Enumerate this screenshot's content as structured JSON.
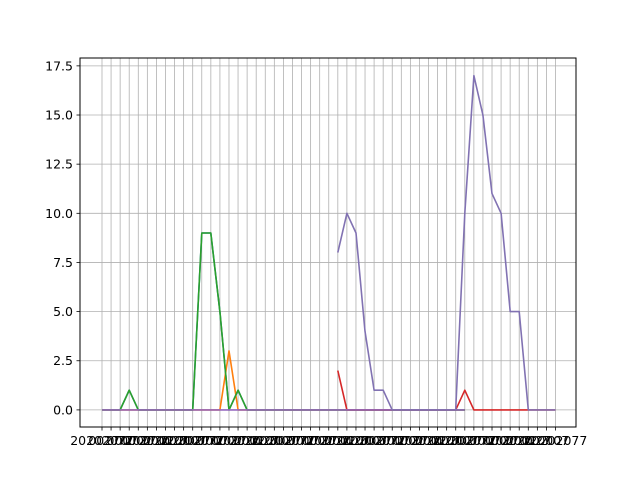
{
  "chart_data": {
    "type": "line",
    "title": "",
    "xlabel": "",
    "ylabel": "",
    "grid": true,
    "ylim": [
      -0.87,
      17.9
    ],
    "yticks": [
      "0.0",
      "2.5",
      "5.0",
      "7.5",
      "10.0",
      "12.5",
      "15.0",
      "17.5"
    ],
    "x_axis_note": "categorical date-like labels that overlap into an unreadable run; partial fragments visible",
    "x_label_fragments": [
      "2020",
      "2077",
      "0027",
      "0002",
      "0007"
    ],
    "series": [
      {
        "color": "#1f77b4",
        "points": [
          [
            0,
            0
          ],
          [
            1,
            0
          ],
          [
            2,
            0
          ],
          [
            3,
            1
          ],
          [
            4,
            0
          ],
          [
            5,
            0
          ],
          [
            6,
            0
          ],
          [
            7,
            0
          ],
          [
            8,
            0
          ],
          [
            9,
            0
          ],
          [
            10,
            0
          ],
          [
            11,
            9
          ],
          [
            12,
            9
          ],
          [
            13,
            5
          ],
          [
            14,
            0
          ],
          [
            15,
            1
          ],
          [
            16,
            0
          ],
          [
            17,
            0
          ],
          [
            18,
            0
          ],
          [
            19,
            0
          ],
          [
            20,
            0
          ],
          [
            21,
            0
          ],
          [
            22,
            0
          ],
          [
            23,
            0
          ],
          [
            24,
            0
          ],
          [
            25,
            0
          ],
          [
            26,
            0
          ],
          [
            27,
            0
          ],
          [
            28,
            0
          ],
          [
            29,
            0
          ],
          [
            30,
            0
          ],
          [
            31,
            0
          ],
          [
            32,
            0
          ],
          [
            33,
            0
          ],
          [
            34,
            0
          ],
          [
            35,
            0
          ],
          [
            36,
            0
          ],
          [
            37,
            0
          ],
          [
            38,
            0
          ],
          [
            39,
            0
          ],
          [
            40,
            0
          ]
        ]
      },
      {
        "color": "#ff7f0e",
        "points": [
          [
            0,
            0
          ],
          [
            1,
            0
          ],
          [
            2,
            0
          ],
          [
            3,
            0
          ],
          [
            4,
            0
          ],
          [
            5,
            0
          ],
          [
            6,
            0
          ],
          [
            7,
            0
          ],
          [
            8,
            0
          ],
          [
            9,
            0
          ],
          [
            10,
            0
          ],
          [
            11,
            0
          ],
          [
            12,
            0
          ],
          [
            13,
            0
          ],
          [
            14,
            3
          ],
          [
            15,
            0
          ],
          [
            16,
            0
          ],
          [
            17,
            0
          ],
          [
            18,
            0
          ],
          [
            19,
            0
          ],
          [
            20,
            0
          ],
          [
            21,
            0
          ],
          [
            22,
            0
          ],
          [
            23,
            0
          ],
          [
            24,
            0
          ],
          [
            25,
            0
          ],
          [
            26,
            0
          ],
          [
            27,
            0
          ],
          [
            28,
            0
          ],
          [
            29,
            0
          ],
          [
            30,
            0
          ],
          [
            31,
            0
          ],
          [
            32,
            0
          ],
          [
            33,
            0
          ],
          [
            34,
            0
          ],
          [
            35,
            0
          ],
          [
            36,
            0
          ],
          [
            37,
            0
          ],
          [
            38,
            0
          ],
          [
            39,
            0
          ],
          [
            40,
            0
          ]
        ]
      },
      {
        "color": "#2ca02c",
        "points": [
          [
            0,
            0
          ],
          [
            1,
            0
          ],
          [
            2,
            0
          ],
          [
            3,
            1
          ],
          [
            4,
            0
          ],
          [
            5,
            0
          ],
          [
            6,
            0
          ],
          [
            7,
            0
          ],
          [
            8,
            0
          ],
          [
            9,
            0
          ],
          [
            10,
            0
          ],
          [
            11,
            9
          ],
          [
            12,
            9
          ],
          [
            13,
            5
          ],
          [
            14,
            0
          ],
          [
            15,
            1
          ],
          [
            16,
            0
          ],
          [
            17,
            0
          ],
          [
            18,
            0
          ],
          [
            19,
            0
          ],
          [
            20,
            0
          ],
          [
            21,
            0
          ],
          [
            22,
            0
          ],
          [
            23,
            0
          ],
          [
            24,
            0
          ],
          [
            25,
            0
          ],
          [
            26,
            0
          ],
          [
            27,
            0
          ],
          [
            28,
            0
          ],
          [
            29,
            0
          ],
          [
            30,
            0
          ],
          [
            31,
            0
          ],
          [
            32,
            0
          ],
          [
            33,
            0
          ],
          [
            34,
            0
          ],
          [
            35,
            0
          ],
          [
            36,
            0
          ],
          [
            37,
            0
          ],
          [
            38,
            0
          ],
          [
            39,
            0
          ],
          [
            40,
            0
          ]
        ]
      },
      {
        "color": "#d62728",
        "points": [
          [
            26,
            2
          ],
          [
            27,
            0
          ],
          [
            28,
            0
          ],
          [
            29,
            0
          ],
          [
            30,
            0
          ],
          [
            31,
            0
          ],
          [
            32,
            0
          ],
          [
            33,
            0
          ],
          [
            34,
            0
          ],
          [
            35,
            0
          ],
          [
            36,
            0
          ],
          [
            37,
            0
          ],
          [
            38,
            0
          ],
          [
            39,
            0
          ],
          [
            40,
            1
          ],
          [
            41,
            0
          ],
          [
            42,
            0
          ],
          [
            43,
            0
          ],
          [
            44,
            0
          ],
          [
            45,
            0
          ],
          [
            46,
            0
          ],
          [
            47,
            0
          ],
          [
            48,
            0
          ],
          [
            49,
            0
          ],
          [
            50,
            0
          ]
        ]
      },
      {
        "color": "#9467bd",
        "points": [
          [
            0,
            0
          ],
          [
            1,
            0
          ],
          [
            2,
            0
          ],
          [
            3,
            0
          ],
          [
            4,
            0
          ],
          [
            5,
            0
          ],
          [
            6,
            0
          ],
          [
            7,
            0
          ],
          [
            8,
            0
          ],
          [
            9,
            0
          ],
          [
            10,
            0
          ],
          [
            11,
            0
          ],
          [
            12,
            0
          ],
          [
            13,
            0
          ],
          [
            14,
            0
          ],
          [
            15,
            0
          ],
          [
            16,
            0
          ],
          [
            17,
            0
          ],
          [
            18,
            0
          ],
          [
            19,
            0
          ],
          [
            20,
            0
          ],
          [
            21,
            0
          ],
          [
            22,
            0
          ],
          [
            23,
            0
          ],
          [
            24,
            0
          ],
          [
            25,
            0
          ],
          [
            26,
            0
          ],
          [
            27,
            0
          ],
          [
            28,
            0
          ],
          [
            29,
            0
          ],
          [
            30,
            0
          ],
          [
            31,
            0
          ],
          [
            32,
            0
          ],
          [
            33,
            0
          ],
          [
            34,
            0
          ],
          [
            35,
            0
          ],
          [
            36,
            0
          ],
          [
            37,
            0
          ],
          [
            38,
            0
          ],
          [
            39,
            0
          ],
          [
            40,
            0
          ]
        ]
      },
      {
        "color": "#8172b2",
        "points": [
          [
            26,
            8
          ],
          [
            27,
            10
          ],
          [
            28,
            9
          ],
          [
            29,
            4
          ],
          [
            30,
            1
          ],
          [
            31,
            1
          ],
          [
            32,
            0
          ],
          [
            33,
            0
          ],
          [
            34,
            0
          ],
          [
            35,
            0
          ],
          [
            36,
            0
          ],
          [
            37,
            0
          ],
          [
            38,
            0
          ],
          [
            39,
            0
          ],
          [
            40,
            10
          ],
          [
            41,
            17
          ],
          [
            42,
            15
          ],
          [
            43,
            11
          ],
          [
            44,
            10
          ],
          [
            45,
            5
          ],
          [
            46,
            5
          ],
          [
            47,
            0
          ],
          [
            48,
            0
          ],
          [
            49,
            0
          ],
          [
            50,
            0
          ]
        ]
      }
    ]
  }
}
